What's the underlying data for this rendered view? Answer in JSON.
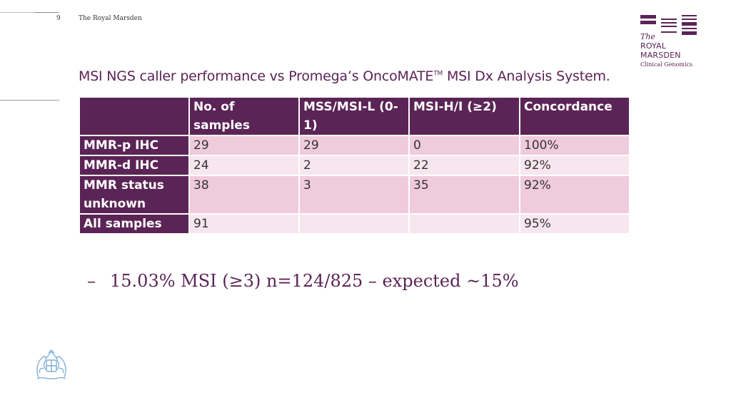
{
  "slide": {
    "number": "9",
    "organisation": "The Royal Marsden"
  },
  "logo": {
    "the": "The",
    "royal": "ROYAL",
    "marsden": "MARSDEN",
    "subtitle": "Clinical Genomics"
  },
  "title": {
    "prefix": "MSI NGS caller performance vs Promega’s OncoMATE",
    "superscript": "TM",
    "suffix": " MSI Dx Analysis System."
  },
  "table": {
    "headers": [
      "",
      "No. of samples",
      "MSS/MSI-L (0-1)",
      "MSI-H/I (≥2)",
      "Concordance"
    ],
    "rows": [
      {
        "label": "MMR-p IHC",
        "cells": [
          "29",
          "29",
          "0",
          "100%"
        ]
      },
      {
        "label": "MMR-d IHC",
        "cells": [
          "24",
          "2",
          "22",
          "92%"
        ]
      },
      {
        "label": "MMR status unknown",
        "cells": [
          "38",
          "3",
          "35",
          "92%"
        ]
      },
      {
        "label": "All samples",
        "cells": [
          "91",
          "",
          "",
          "95%"
        ]
      }
    ]
  },
  "bullet": {
    "marker": "–",
    "text": "15.03% MSI (≥3) n=124/825 – expected ~15%"
  },
  "colors": {
    "brand": "#5b2456",
    "band_dark": "#f0cbdc",
    "band_light": "#f8e6ee"
  }
}
